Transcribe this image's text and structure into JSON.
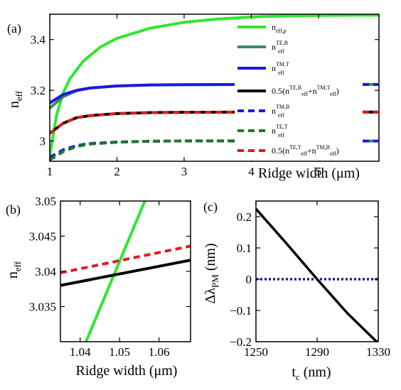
{
  "figure": {
    "panels": [
      {
        "id": "a",
        "tag": "(a)"
      },
      {
        "id": "b",
        "tag": "(b)"
      },
      {
        "id": "c",
        "tag": "(c)"
      }
    ]
  },
  "chart_data": [
    {
      "panel": "(a)",
      "type": "line",
      "xlabel": "Ridge width (μm)",
      "ylabel_main": "n",
      "ylabel_sub": "eff",
      "xlim": [
        1,
        5.9
      ],
      "ylim": [
        2.92,
        3.5
      ],
      "xticks": [
        1,
        2,
        3,
        4,
        5
      ],
      "yticks": [
        3.0,
        3.2,
        3.4
      ],
      "ytick_labels": [
        "3",
        "3.2",
        "3.4"
      ],
      "legend_position": "right",
      "series": [
        {
          "key": "p",
          "name_main": "n",
          "name_sub": "eff,p",
          "color": "#2ee82e",
          "dash": "solid",
          "x": [
            1.0,
            1.1,
            1.2,
            1.3,
            1.5,
            1.75,
            2.0,
            2.5,
            3.0,
            3.5,
            4.0,
            4.5,
            5.0,
            5.5,
            5.9
          ],
          "y": [
            2.94,
            3.1,
            3.19,
            3.245,
            3.315,
            3.37,
            3.405,
            3.445,
            3.468,
            3.481,
            3.489,
            3.493,
            3.495,
            3.496,
            3.496
          ]
        },
        {
          "key": "TEB",
          "name_main": "n",
          "name_sub": "eff",
          "name_sup": "TE,B",
          "color": "#3a8a62",
          "dash": "solid",
          "x": [
            1.0,
            1.2,
            1.4,
            1.6,
            2.0,
            2.5,
            3.0,
            4.0,
            5.0
          ],
          "y": [
            3.13,
            3.175,
            3.198,
            3.209,
            3.217,
            3.221,
            3.222,
            3.223,
            3.223
          ]
        },
        {
          "key": "TMT",
          "name_main": "n",
          "name_sub": "eff",
          "name_sup": "TM,T",
          "color": "#1a1ae0",
          "dash": "solid",
          "x": [
            1.0,
            1.2,
            1.4,
            1.6,
            2.0,
            2.5,
            3.0,
            4.0,
            5.0
          ],
          "y": [
            3.15,
            3.183,
            3.2,
            3.209,
            3.217,
            3.221,
            3.222,
            3.223,
            3.223
          ]
        },
        {
          "key": "avg1",
          "name_text": "0.5(n",
          "name_sub": "eff",
          "name_sup": "TE,B",
          "name_mid": "+n",
          "name_sup2": "TM,T",
          "name_end": ")",
          "color": "#000000",
          "dash": "solid",
          "x": [
            1.0,
            1.2,
            1.4,
            1.6,
            2.0,
            2.5,
            3.0,
            4.0,
            5.0
          ],
          "y": [
            3.03,
            3.07,
            3.092,
            3.1,
            3.108,
            3.112,
            3.113,
            3.114,
            3.114
          ]
        },
        {
          "key": "TMB",
          "name_main": "n",
          "name_sub": "eff",
          "name_sup": "TM,B",
          "color": "#1a1ae0",
          "dash": "dashed",
          "x": [
            1.0,
            1.2,
            1.4,
            1.6,
            2.0,
            2.5,
            3.0,
            4.0,
            5.0
          ],
          "y": [
            2.935,
            2.965,
            2.982,
            2.99,
            2.996,
            2.999,
            3.0,
            3.0,
            3.0
          ]
        },
        {
          "key": "TET",
          "name_main": "n",
          "name_sub": "eff",
          "name_sup": "TE,T",
          "color": "#1f7a1f",
          "dash": "dashed",
          "x": [
            1.0,
            1.2,
            1.4,
            1.6,
            2.0,
            2.5,
            3.0,
            4.0,
            5.0
          ],
          "y": [
            2.925,
            2.958,
            2.978,
            2.988,
            2.995,
            2.999,
            3.0,
            3.0,
            3.0
          ]
        },
        {
          "key": "avg2",
          "name_text": "0.5(n",
          "name_sub": "eff",
          "name_sup": "TE,T",
          "name_mid": "+n",
          "name_sup2": "TM,B",
          "name_end": ")",
          "color": "#e01a1a",
          "dash": "dashed",
          "x": [
            1.0,
            1.2,
            1.4,
            1.6,
            2.0,
            2.5,
            3.0,
            4.0,
            5.0
          ],
          "y": [
            3.03,
            3.07,
            3.092,
            3.1,
            3.108,
            3.112,
            3.113,
            3.114,
            3.114
          ]
        }
      ]
    },
    {
      "panel": "(b)",
      "type": "line",
      "xlabel": "Ridge width (μm)",
      "ylabel_main": "n",
      "ylabel_sub": "eff",
      "xlim": [
        1.035,
        1.068
      ],
      "ylim": [
        3.03,
        3.05
      ],
      "xticks": [
        1.04,
        1.05,
        1.06
      ],
      "xtick_labels": [
        "1.04",
        "1.05",
        "1.06"
      ],
      "yticks": [
        3.035,
        3.04,
        3.045,
        3.05
      ],
      "ytick_labels": [
        "3.035",
        "3.04",
        "3.045",
        "3.05"
      ],
      "series": [
        {
          "key": "p",
          "color": "#2ee82e",
          "dash": "solid",
          "x": [
            1.0415,
            1.0564
          ],
          "y": [
            3.03,
            3.05
          ]
        },
        {
          "key": "avg1",
          "color": "#000000",
          "dash": "solid",
          "x": [
            1.035,
            1.068
          ],
          "y": [
            3.038,
            3.0416
          ]
        },
        {
          "key": "avg2",
          "color": "#e01a1a",
          "dash": "dashed",
          "x": [
            1.035,
            1.068
          ],
          "y": [
            3.0398,
            3.0436
          ]
        }
      ]
    },
    {
      "panel": "(c)",
      "type": "line",
      "xlabel_main": "t",
      "xlabel_sub": "c",
      "xlabel_unit": " (nm)",
      "ylabel_main": "Δλ",
      "ylabel_sub": "PM",
      "ylabel_unit": " (nm)",
      "xlim": [
        1250,
        1330
      ],
      "ylim": [
        -0.2,
        0.25
      ],
      "xticks": [
        1250,
        1290,
        1330
      ],
      "xtick_labels": [
        "1250",
        "1290",
        "1330"
      ],
      "yticks": [
        -0.2,
        -0.1,
        0,
        0.1,
        0.2
      ],
      "ytick_labels": [
        "−0.2",
        "−0.1",
        "0",
        "0.1",
        "0.2"
      ],
      "series": [
        {
          "key": "delta",
          "color": "#000000",
          "dash": "solid",
          "x": [
            1250,
            1270,
            1290,
            1310,
            1330
          ],
          "y": [
            0.225,
            0.114,
            0.0,
            -0.11,
            -0.205
          ]
        },
        {
          "key": "zero",
          "color": "#1a1aa0",
          "dash": "dotted",
          "x": [
            1250,
            1330
          ],
          "y": [
            0,
            0
          ]
        }
      ]
    }
  ]
}
